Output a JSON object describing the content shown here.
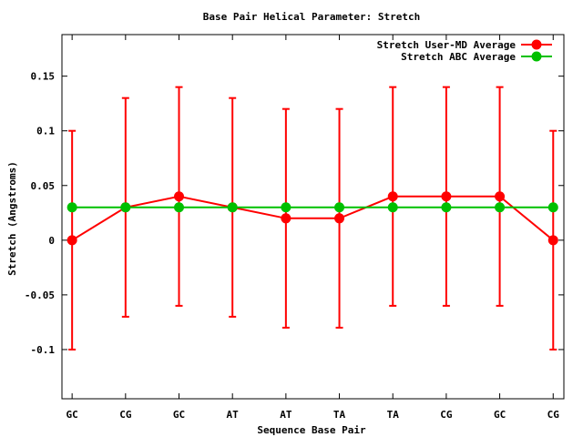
{
  "chart_data": {
    "type": "line",
    "title": "Base Pair Helical Parameter: Stretch",
    "xlabel": "Sequence Base Pair",
    "ylabel": "Stretch (Angstroms)",
    "categories": [
      "GC",
      "CG",
      "GC",
      "AT",
      "AT",
      "TA",
      "TA",
      "CG",
      "GC",
      "CG"
    ],
    "xlim": [
      -0.19,
      9.2
    ],
    "ylim": [
      -0.145,
      0.188
    ],
    "yticks": [
      -0.1,
      -0.05,
      0,
      0.05,
      0.1,
      0.15
    ],
    "ytick_labels": [
      "-0.1",
      "-0.05",
      "0",
      "0.05",
      "0.1",
      "0.15"
    ],
    "grid": false,
    "legend_position": "top-right",
    "series": [
      {
        "name": "Stretch User-MD Average",
        "color": "#ff0000",
        "values": [
          0,
          0.03,
          0.04,
          0.03,
          0.02,
          0.02,
          0.04,
          0.04,
          0.04,
          0
        ],
        "error": [
          0.1,
          0.1,
          0.1,
          0.1,
          0.1,
          0.1,
          0.1,
          0.1,
          0.1,
          0.1
        ]
      },
      {
        "name": "Stretch ABC Average",
        "color": "#00c000",
        "values": [
          0.03,
          0.03,
          0.03,
          0.03,
          0.03,
          0.03,
          0.03,
          0.03,
          0.03,
          0.03
        ]
      }
    ]
  }
}
